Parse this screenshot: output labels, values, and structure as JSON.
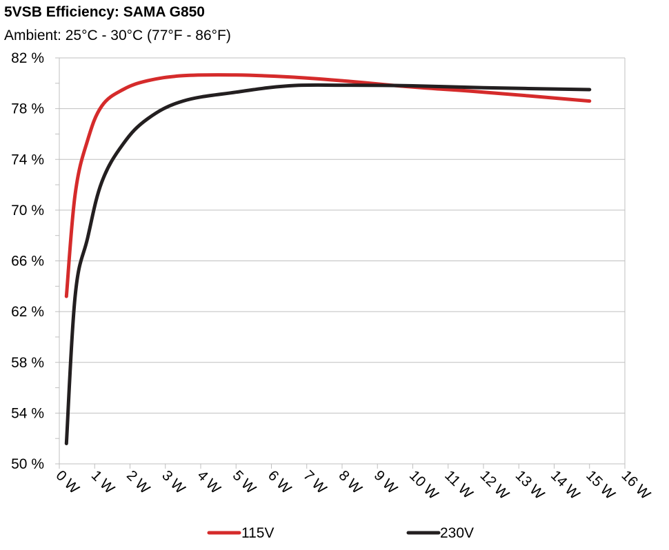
{
  "chart_data": {
    "type": "line",
    "title": "5VSB Efficiency: SAMA G850",
    "subtitle": "Ambient: 25°C - 30°C (77°F - 86°F)",
    "xlabel": "",
    "ylabel": "",
    "xlim": [
      0,
      16
    ],
    "ylim": [
      50,
      82
    ],
    "x_ticks": [
      0,
      1,
      2,
      3,
      4,
      5,
      6,
      7,
      8,
      9,
      10,
      11,
      12,
      13,
      14,
      15,
      16
    ],
    "x_tick_labels": [
      "0 W",
      "1 W",
      "2 W",
      "3 W",
      "4 W",
      "5 W",
      "6 W",
      "7 W",
      "8 W",
      "9 W",
      "10 W",
      "11 W",
      "12 W",
      "13 W",
      "14 W",
      "15 W",
      "16 W"
    ],
    "y_ticks": [
      50,
      54,
      58,
      62,
      66,
      70,
      74,
      78,
      82
    ],
    "y_tick_labels": [
      "50 %",
      "54 %",
      "58 %",
      "62 %",
      "66 %",
      "70 %",
      "74 %",
      "78 %",
      "82 %"
    ],
    "grid": "horizontal",
    "legend_position": "bottom",
    "series": [
      {
        "name": "115V",
        "color": "#d52b2b",
        "x": [
          0.2,
          0.45,
          0.8,
          1.2,
          1.8,
          2.5,
          3.5,
          5.0,
          6.5,
          8.0,
          10.0,
          12.0,
          15.0
        ],
        "y": [
          63.2,
          71.3,
          75.5,
          78.2,
          79.5,
          80.2,
          80.6,
          80.65,
          80.5,
          80.2,
          79.7,
          79.3,
          78.6
        ]
      },
      {
        "name": "230V",
        "color": "#231f20",
        "x": [
          0.2,
          0.45,
          0.8,
          1.2,
          1.8,
          2.5,
          3.5,
          5.0,
          6.5,
          8.0,
          10.0,
          12.0,
          15.0
        ],
        "y": [
          51.6,
          63.3,
          67.8,
          72.2,
          75.2,
          77.2,
          78.6,
          79.3,
          79.8,
          79.85,
          79.8,
          79.65,
          79.5
        ]
      }
    ]
  }
}
